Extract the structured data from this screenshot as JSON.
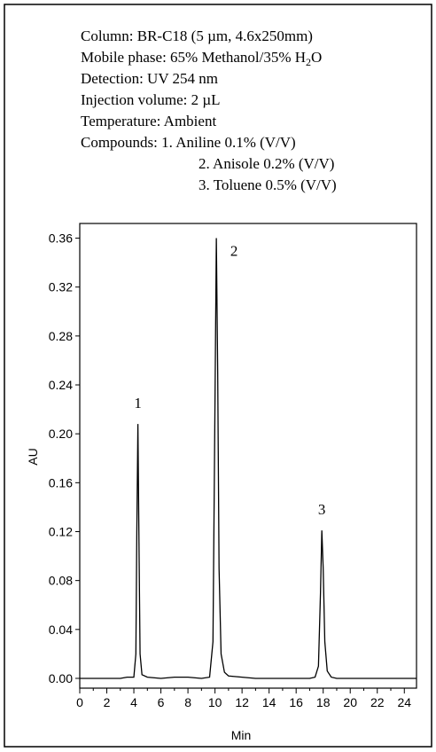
{
  "chart_data": {
    "type": "line",
    "info": {
      "column": "Column: BR-C18 (5 µm, 4.6x250mm)",
      "mobile_phase": [
        "Mobile phase: 65% Methanol/35% H",
        "2",
        "O"
      ],
      "detection": "Detection: UV 254 nm",
      "injection": "Injection volume: 2 µL",
      "temperature": "Temperature: Ambient",
      "compounds": [
        "Compounds: 1. Aniline 0.1% (V/V)",
        "2. Anisole 0.2% (V/V)",
        "3. Toluene 0.5% (V/V)"
      ]
    },
    "x_label": "Min",
    "y_label": "AU",
    "x": [
      0,
      1,
      2,
      3,
      3.5,
      4.0,
      4.15,
      4.22,
      4.3,
      4.38,
      4.46,
      4.6,
      5,
      6,
      7,
      8,
      9,
      9.6,
      9.85,
      9.98,
      10.1,
      10.2,
      10.3,
      10.45,
      10.7,
      11,
      12,
      13,
      14,
      15,
      16,
      17,
      17.4,
      17.65,
      17.8,
      17.9,
      18.0,
      18.12,
      18.3,
      18.6,
      19,
      20,
      21,
      22,
      23,
      24,
      24.9
    ],
    "series": [
      {
        "name": "AU",
        "color": "#000000",
        "values": [
          0.0,
          0.0,
          0.0,
          0.0,
          0.001,
          0.001,
          0.02,
          0.12,
          0.208,
          0.11,
          0.02,
          0.003,
          0.001,
          0.0,
          0.001,
          0.001,
          0.0,
          0.001,
          0.03,
          0.2,
          0.36,
          0.25,
          0.09,
          0.02,
          0.005,
          0.002,
          0.001,
          0.0,
          0.0,
          0.0,
          0.0,
          0.0,
          0.001,
          0.01,
          0.07,
          0.121,
          0.09,
          0.03,
          0.006,
          0.001,
          0.0,
          0.0,
          0.0,
          0.0,
          0.0,
          0.0,
          0.0
        ]
      }
    ],
    "annotations": [
      {
        "text": "1",
        "x": 4.3,
        "y": 0.208
      },
      {
        "text": "2",
        "x": 10.1,
        "y": 0.36
      },
      {
        "text": "3",
        "x": 17.9,
        "y": 0.121
      }
    ],
    "xlim": [
      0,
      24.9
    ],
    "ylim": [
      -0.008,
      0.372
    ],
    "xticks": [
      0,
      2,
      4,
      6,
      8,
      10,
      12,
      14,
      16,
      18,
      20,
      22,
      24
    ],
    "xminorticks": [
      1,
      3,
      5,
      7,
      9,
      11,
      13,
      15,
      17,
      19,
      21,
      23
    ],
    "yticks": [
      {
        "value": 0,
        "label": "0.00"
      },
      {
        "value": 0.04,
        "label": "0.04"
      },
      {
        "value": 0.08,
        "label": "0.08"
      },
      {
        "value": 0.12,
        "label": "0.12"
      },
      {
        "value": 0.16,
        "label": "0.16"
      },
      {
        "value": 0.2,
        "label": "0.20"
      },
      {
        "value": 0.24,
        "label": "0.24"
      },
      {
        "value": 0.28,
        "label": "0.28"
      },
      {
        "value": 0.32,
        "label": "0.32"
      },
      {
        "value": 0.36,
        "label": "0.36"
      }
    ]
  }
}
